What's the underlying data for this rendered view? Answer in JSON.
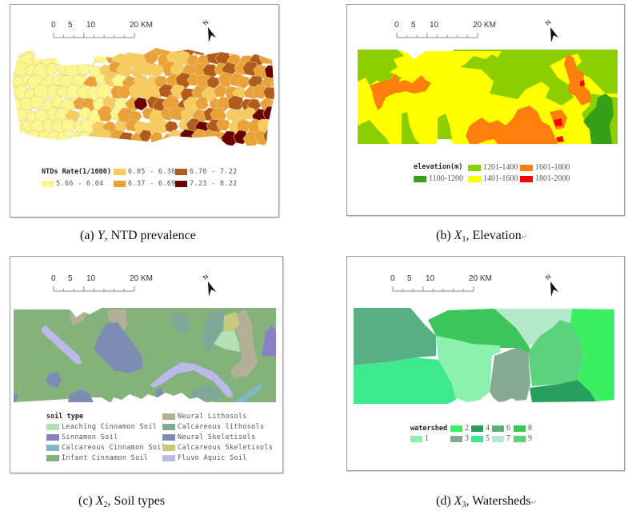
{
  "scale_bar": {
    "labels": [
      "0",
      "5",
      "10",
      "20 KM"
    ]
  },
  "north_arrow": {
    "label": "N"
  },
  "panels": {
    "a": {
      "caption": {
        "letter": "(a) ",
        "var": "Y",
        "sub": "",
        "desc": ", NTD prevalence",
        "mark": ""
      },
      "legend": {
        "title": "NTDs Rate(1/1000)",
        "items": [
          {
            "label": "6.05 - 6.36",
            "color": "#F7CB5E"
          },
          {
            "label": "6.70 - 7.22",
            "color": "#B15C1C"
          },
          {
            "label": "5.66 - 6.04",
            "color": "#FCF68F"
          },
          {
            "label": "6.37 - 6.69",
            "color": "#EAA137"
          },
          {
            "label": "7.23 - 8.22",
            "color": "#6A0202"
          }
        ]
      }
    },
    "b": {
      "caption": {
        "letter": "(b) ",
        "var": "X",
        "sub": "1",
        "desc": ", Elevation",
        "mark": "↵"
      },
      "legend": {
        "title": "elevation(m)",
        "items": [
          {
            "label": "1201-1400",
            "color": "#8CCE00"
          },
          {
            "label": "1601-1800",
            "color": "#FF7F0E"
          },
          {
            "label": "1100-1200",
            "color": "#35A018"
          },
          {
            "label": "1401-1600",
            "color": "#FFFF00"
          },
          {
            "label": "1801-2000",
            "color": "#FF0000"
          }
        ]
      }
    },
    "c": {
      "caption": {
        "letter": "(c) ",
        "var": "X",
        "sub": "2",
        "desc": ", Soil types",
        "mark": ""
      },
      "legend": {
        "title": "soil type",
        "items": [
          {
            "label": "Leaching Cinnamon Soil",
            "color": "#B4E0B6"
          },
          {
            "label": "Sinnamon Soil",
            "color": "#8A80C8"
          },
          {
            "label": "Calcareous Cinnamon Soil",
            "color": "#80B8C4"
          },
          {
            "label": "Infant Cinnamon Soil",
            "color": "#84B27A"
          },
          {
            "label": "Neural Lithosols",
            "color": "#B2B198"
          },
          {
            "label": "Calcareous lithosols",
            "color": "#7FA896"
          },
          {
            "label": "Neural Skeletisols",
            "color": "#7D8CB5"
          },
          {
            "label": "Calcareous Skeletisols",
            "color": "#C4CA80"
          },
          {
            "label": "Fluvo Aquic Soil",
            "color": "#BABAEA"
          }
        ]
      }
    },
    "d": {
      "caption": {
        "letter": "(d) ",
        "var": "X",
        "sub": "3",
        "desc": ", Watersheds",
        "mark": "↵"
      },
      "legend": {
        "title": "watershed",
        "items": [
          {
            "label": "2",
            "color": "#3AF060"
          },
          {
            "label": "4",
            "color": "#27A05E"
          },
          {
            "label": "6",
            "color": "#5AAF82"
          },
          {
            "label": "8",
            "color": "#3CC55A"
          },
          {
            "label": "1",
            "color": "#8CF0AE"
          },
          {
            "label": "3",
            "color": "#86A992"
          },
          {
            "label": "5",
            "color": "#3DE88E"
          },
          {
            "label": "7",
            "color": "#B3EBCA"
          },
          {
            "label": "9",
            "color": "#5CD27C"
          }
        ]
      }
    }
  }
}
